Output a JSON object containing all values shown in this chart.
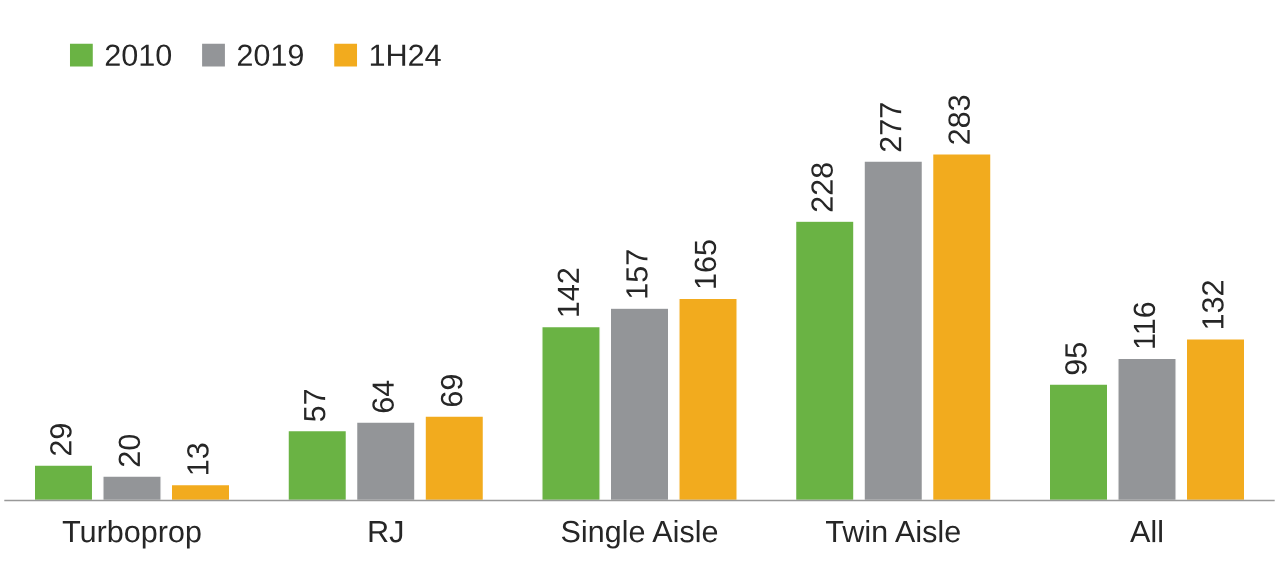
{
  "chart_data": {
    "type": "bar",
    "categories": [
      "Turboprop",
      "RJ",
      "Single Aisle",
      "Twin Aisle",
      "All"
    ],
    "series": [
      {
        "name": "2010",
        "color": "#6ab344",
        "values": [
          29,
          57,
          142,
          228,
          95
        ]
      },
      {
        "name": "2019",
        "color": "#939598",
        "values": [
          20,
          64,
          157,
          277,
          116
        ]
      },
      {
        "name": "1H24",
        "color": "#f2ab1e",
        "values": [
          13,
          69,
          165,
          283,
          132
        ]
      }
    ],
    "data_labels": true,
    "legend": "top left",
    "grid": false,
    "tick_labels": "x"
  }
}
